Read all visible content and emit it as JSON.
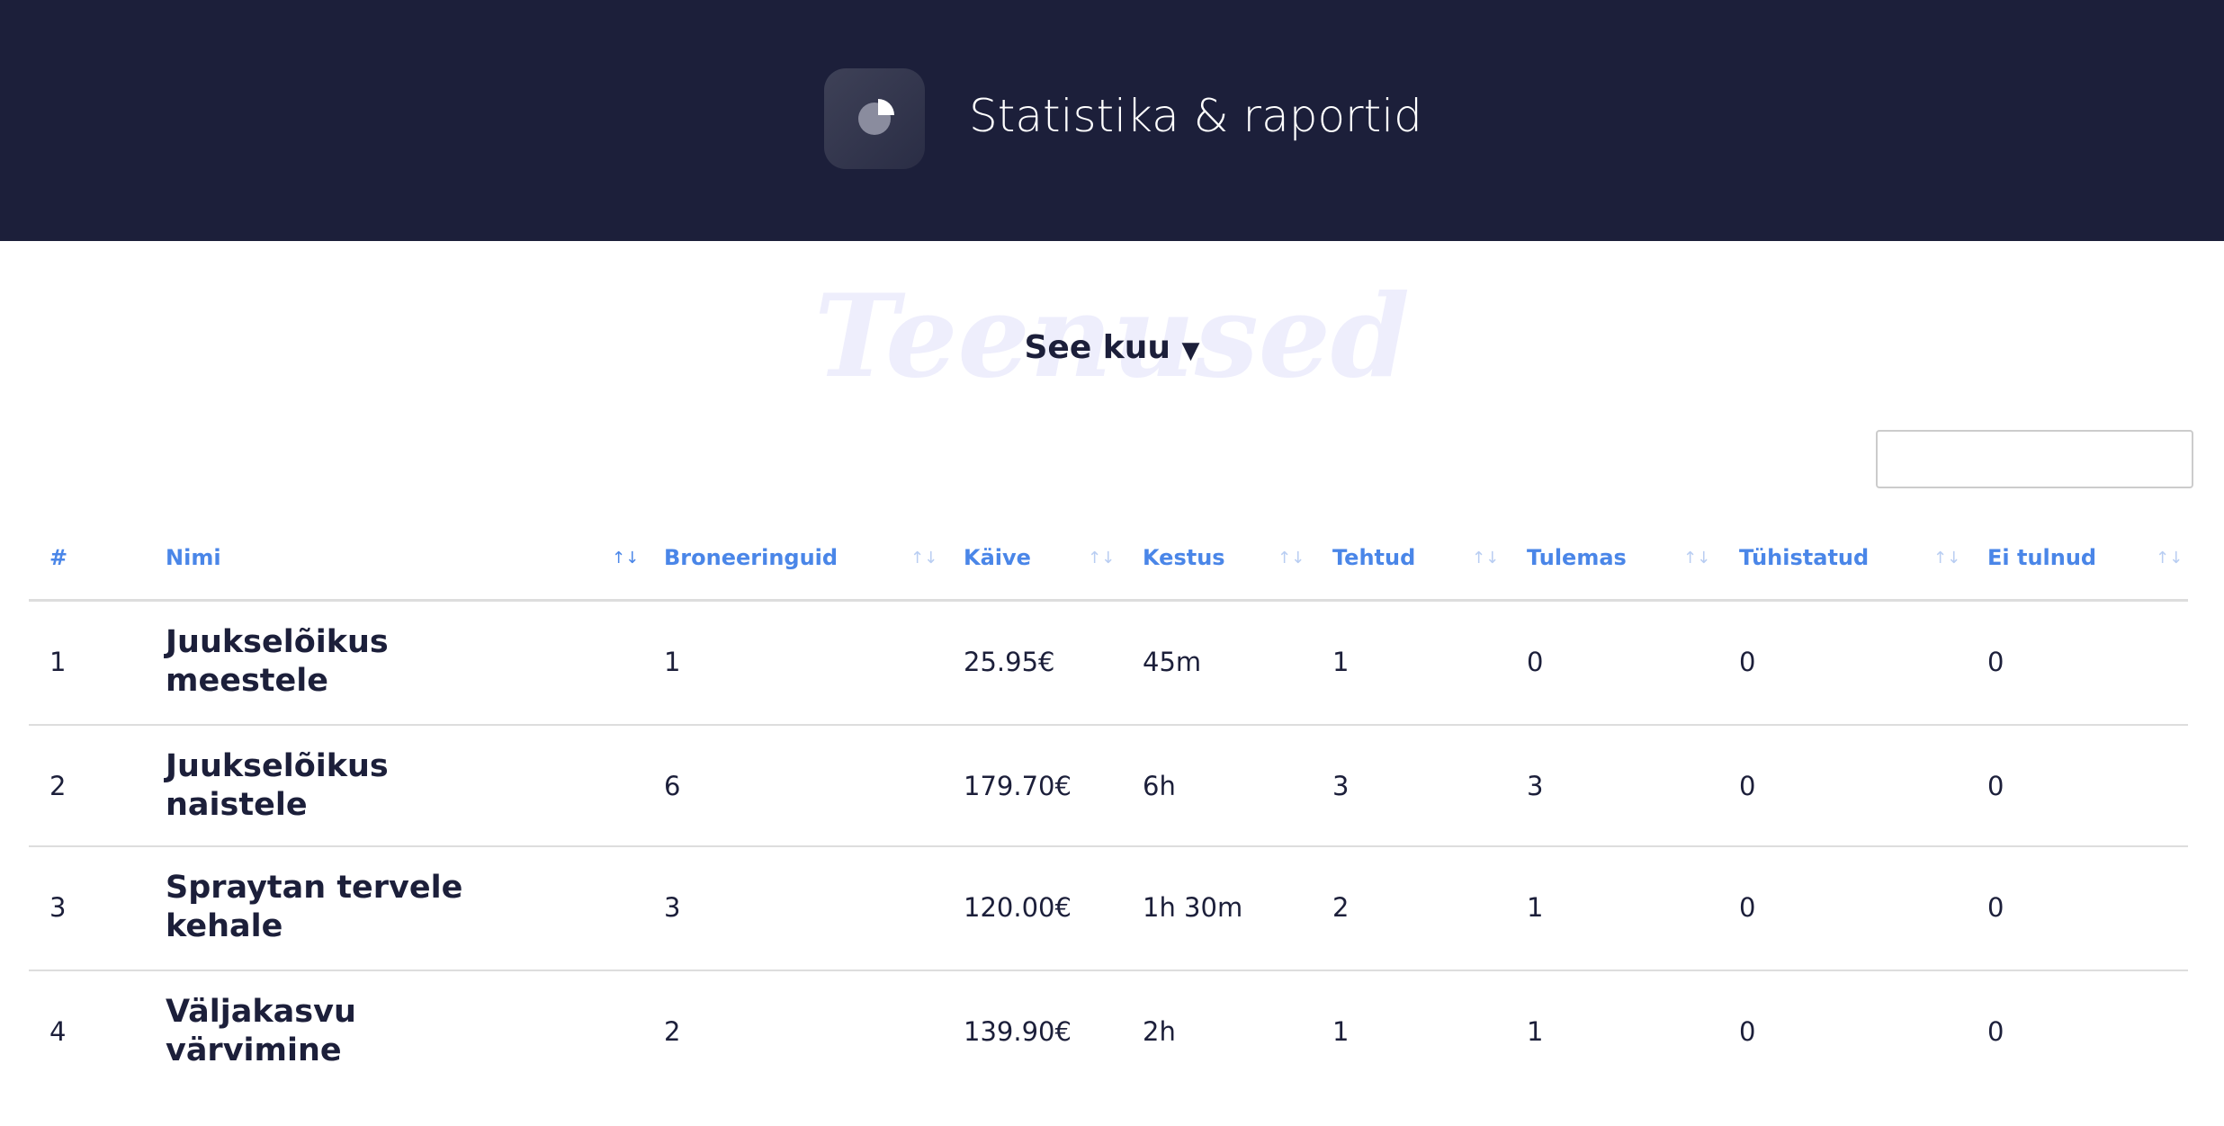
{
  "header": {
    "title": "Statistika & raportid"
  },
  "filter": {
    "watermark": "Teenused",
    "period": "See kuu"
  },
  "table": {
    "columns": [
      "#",
      "Nimi",
      "Broneeringuid",
      "Käive",
      "Kestus",
      "Tehtud",
      "Tulemas",
      "Tühistatud",
      "Ei tulnud"
    ],
    "rows": [
      [
        1,
        "Juukselõikus meestele",
        1,
        "25.95€",
        "45m",
        1,
        0,
        0,
        0
      ],
      [
        2,
        "Juukselõikus naistele",
        6,
        "179.70€",
        "6h",
        3,
        3,
        0,
        0
      ],
      [
        3,
        "Spraytan tervele kehale",
        3,
        "120.00€",
        "1h 30m",
        2,
        1,
        0,
        0
      ],
      [
        4,
        "Väljakasvu värvimine",
        2,
        "139.90€",
        "2h",
        1,
        1,
        0,
        0
      ]
    ]
  }
}
